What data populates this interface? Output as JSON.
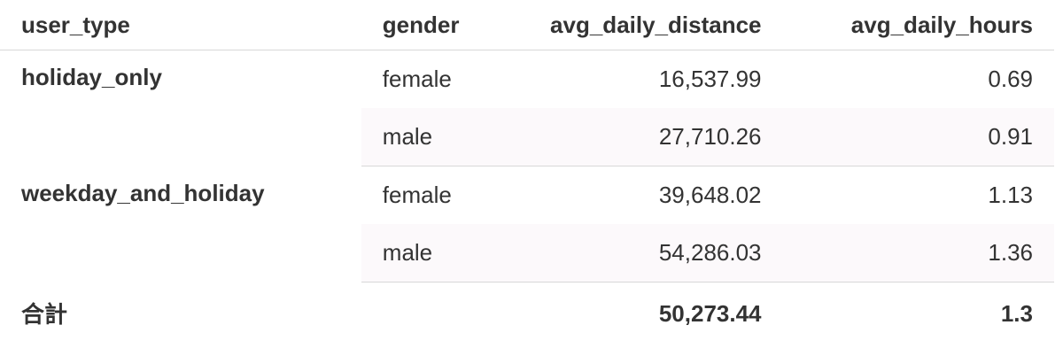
{
  "table": {
    "columns": [
      "user_type",
      "gender",
      "avg_daily_distance",
      "avg_daily_hours"
    ],
    "groups": [
      {
        "user_type": "holiday_only",
        "rows": [
          [
            "female",
            "16,537.99",
            "0.69"
          ],
          [
            "male",
            "27,710.26",
            "0.91"
          ]
        ]
      },
      {
        "user_type": "weekday_and_holiday",
        "rows": [
          [
            "female",
            "39,648.02",
            "1.13"
          ],
          [
            "male",
            "54,286.03",
            "1.36"
          ]
        ]
      }
    ],
    "total": {
      "label": "合計",
      "avg_daily_distance": "50,273.44",
      "avg_daily_hours": "1.3"
    }
  }
}
